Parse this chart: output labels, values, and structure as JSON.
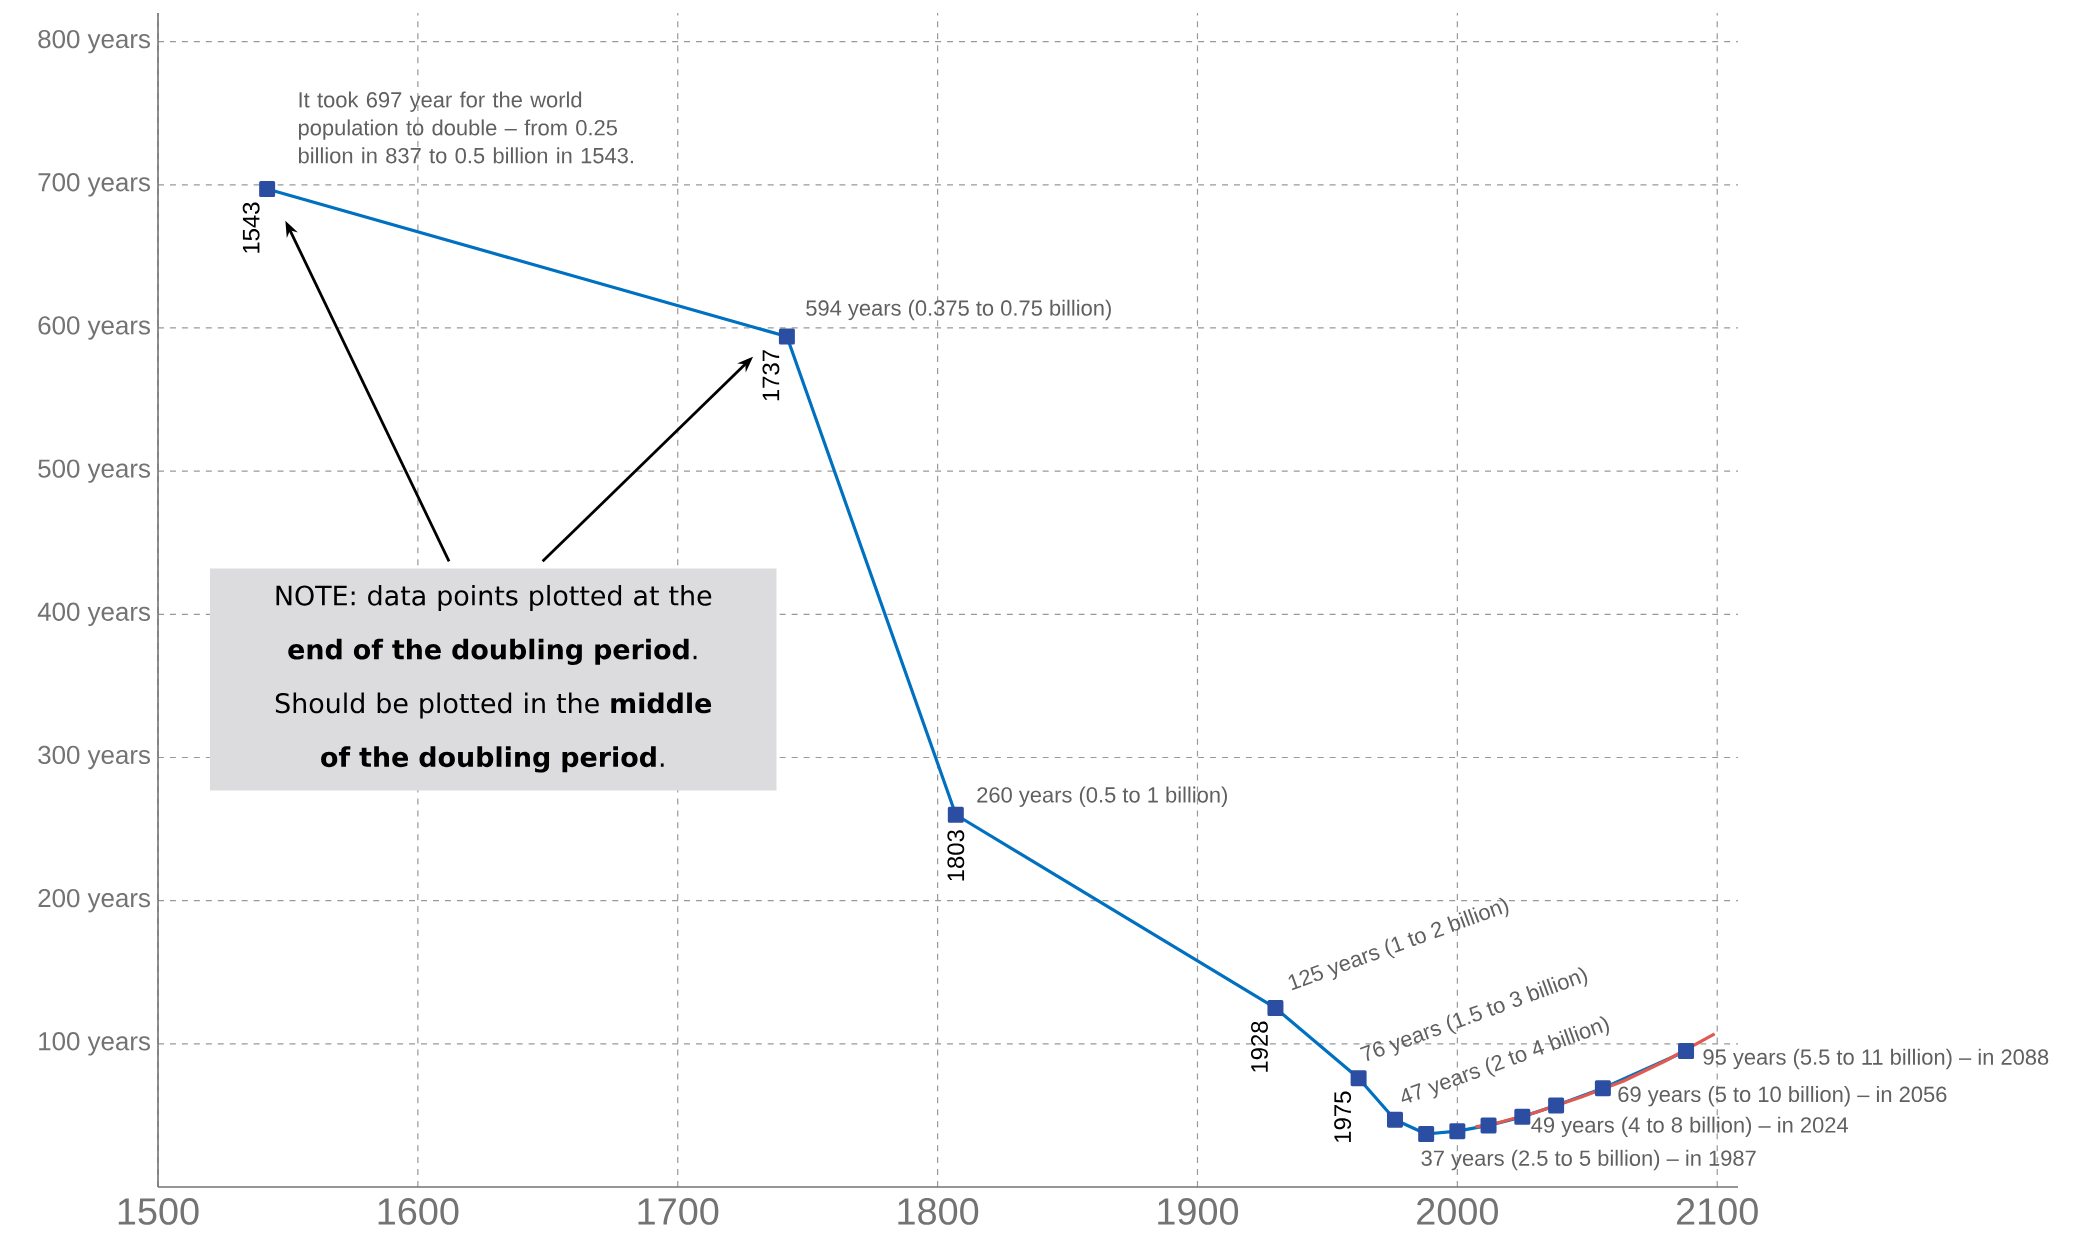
{
  "chart_data": {
    "type": "line",
    "xlim": [
      1500,
      2108
    ],
    "ylim": [
      0,
      820
    ],
    "xticks": [
      1500,
      1600,
      1700,
      1800,
      1900,
      2000,
      2100
    ],
    "yticks": [
      {
        "value": 100,
        "label": "100 years"
      },
      {
        "value": 200,
        "label": "200 years"
      },
      {
        "value": 300,
        "label": "300 years"
      },
      {
        "value": 400,
        "label": "400 years"
      },
      {
        "value": 500,
        "label": "500 years"
      },
      {
        "value": 600,
        "label": "600 years"
      },
      {
        "value": 700,
        "label": "700 years"
      },
      {
        "value": 800,
        "label": "800 years"
      }
    ],
    "grid": true,
    "marker": "square",
    "line_style": "solid",
    "series": [
      {
        "color": "#0070c0",
        "x": [
          1542,
          1742,
          1807,
          1930,
          1962,
          1976,
          1988,
          2000,
          2012,
          2025,
          2038,
          2056,
          2088
        ],
        "values": [
          697,
          594,
          260,
          125,
          76,
          47,
          37,
          39,
          43,
          49,
          57,
          69,
          95
        ]
      },
      {
        "type": "line",
        "marker": "none",
        "color": "#e05a50",
        "x": [
          2007,
          2016,
          2030,
          2048,
          2064,
          2080,
          2099
        ],
        "values": [
          42,
          45,
          52,
          63,
          74,
          88,
          107
        ]
      }
    ],
    "annotations": [
      {
        "text": "It took 697 year for the world population to double – from 0.25 billion in 837 to 0.5 billion in 1543.",
        "x": 1542,
        "y": 697
      },
      {
        "text": "1543",
        "x": 1542,
        "y": 697
      },
      {
        "text": "594 years (0.375 to 0.75 billion)",
        "x": 1742,
        "y": 594
      },
      {
        "text": "1737",
        "x": 1742,
        "y": 594
      },
      {
        "text": "260 years (0.5 to 1 billion)",
        "x": 1807,
        "y": 260
      },
      {
        "text": "1803",
        "x": 1807,
        "y": 260
      },
      {
        "text": "125 years (1 to 2 billion)",
        "x": 1930,
        "y": 125
      },
      {
        "text": "1928",
        "x": 1930,
        "y": 125
      },
      {
        "text": "76 years (1.5 to 3 billion)",
        "x": 1962,
        "y": 76
      },
      {
        "text": "1975",
        "x": 1962,
        "y": 76
      },
      {
        "text": "47 years (2 to 4 billion)",
        "x": 1976,
        "y": 47
      },
      {
        "text": "37 years (2.5 to 5 billion) – in 1987",
        "x": 1988,
        "y": 37
      },
      {
        "text": "49 years (4 to 8 billion) – in 2024",
        "x": 2025,
        "y": 49
      },
      {
        "text": "69 years (5 to 10 billion) – in 2056",
        "x": 2056,
        "y": 69
      },
      {
        "text": "95 years (5.5 to 11 billion) – in 2088",
        "x": 2088,
        "y": 95
      },
      "NOTE: data points plotted at the **end of the doubling period**. Should be plotted in the **middle of the doubling period**."
    ]
  }
}
